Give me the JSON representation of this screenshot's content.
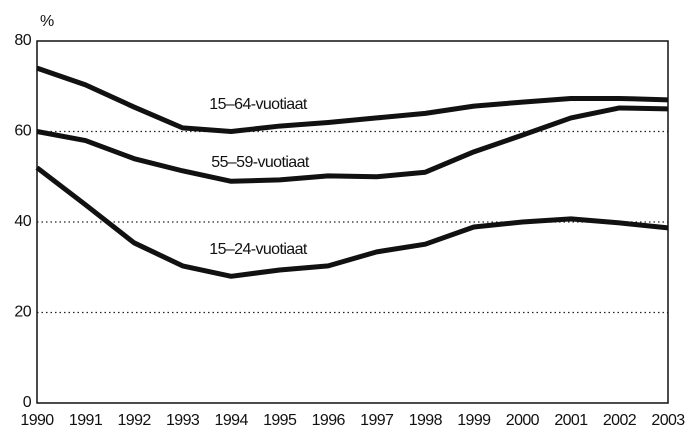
{
  "chart_data": {
    "type": "line",
    "y_unit": "%",
    "categories": [
      "1990",
      "1991",
      "1992",
      "1993",
      "1994",
      "1995",
      "1996",
      "1997",
      "1998",
      "1999",
      "2000",
      "2001",
      "2002",
      "2003"
    ],
    "series": [
      {
        "name": "15–64-vuotiaat",
        "color": "#111111",
        "values": [
          74,
          70.3,
          65.4,
          60.8,
          60,
          61.2,
          62,
          63,
          64,
          65.6,
          66.5,
          67.3,
          67.3,
          67
        ]
      },
      {
        "name": "55–59-vuotiaat",
        "color": "#111111",
        "values": [
          60,
          58,
          54,
          51.3,
          49,
          49.3,
          50.2,
          50,
          51,
          55.5,
          59.2,
          63,
          65.2,
          65
        ]
      },
      {
        "name": "15–24-vuotiaat",
        "color": "#111111",
        "values": [
          52,
          43.8,
          35.4,
          30.3,
          28,
          29.4,
          30.3,
          33.4,
          35.1,
          38.9,
          40,
          40.7,
          39.8,
          38.7
        ]
      }
    ],
    "ylim": [
      0,
      80
    ],
    "yticks": [
      0,
      20,
      40,
      60,
      80
    ],
    "grid": true
  }
}
